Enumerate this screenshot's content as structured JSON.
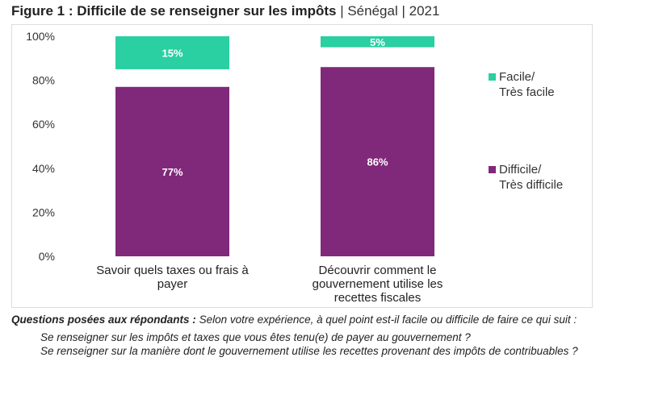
{
  "title": {
    "main": "Figure 1 : Difficile de se renseigner sur les impôts",
    "sep1": " | ",
    "country": "Sénégal",
    "sep2": " | ",
    "year": "2021"
  },
  "chart_data": {
    "type": "bar",
    "stacked": true,
    "categories": [
      [
        "Savoir quels taxes ou frais à",
        "payer"
      ],
      [
        "Découvrir comment le",
        "gouvernement utilise les",
        "recettes fiscales"
      ]
    ],
    "series": [
      {
        "name": "Difficile/ Très difficile",
        "legend": [
          "Difficile/",
          "Très difficile"
        ],
        "values": [
          77,
          86
        ],
        "labels": [
          "77%",
          "86%"
        ],
        "color": "#80297A",
        "position": "bottom"
      },
      {
        "name": "Facile/ Très facile",
        "legend": [
          "Facile/",
          "Très facile"
        ],
        "values": [
          15,
          5
        ],
        "labels": [
          "15%",
          "5%"
        ],
        "color": "#2ACFA2",
        "position": "top"
      }
    ],
    "ylim": [
      0,
      100
    ],
    "yticks": [
      "0%",
      "20%",
      "40%",
      "60%",
      "80%",
      "100%"
    ],
    "grid": false,
    "legend_placement": "right"
  },
  "notes": {
    "lead_bold": "Questions posées aux répondants :",
    "lead_text": " Selon votre expérience, à quel point est-il facile ou difficile de faire ce qui suit :",
    "q1": "Se renseigner sur les impôts et taxes que vous êtes tenu(e) de payer au gouvernement ?",
    "q2": "Se renseigner sur la manière dont le gouvernement utilise les recettes provenant des impôts de contribuables ?"
  }
}
